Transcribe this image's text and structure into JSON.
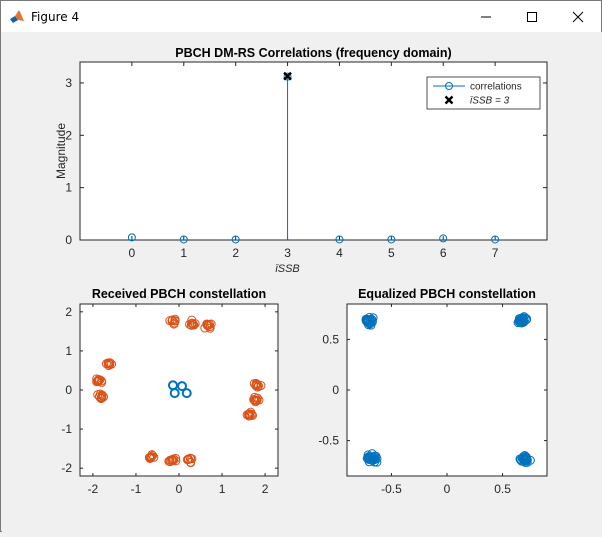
{
  "window": {
    "title": "Figure 4",
    "icons": {
      "app": "matlab-icon",
      "minimize": "minimize-icon",
      "maximize": "maximize-icon",
      "close": "close-icon"
    }
  },
  "colors": {
    "stem": "#0072BD",
    "received": "#D95319",
    "equalized": "#0072BD",
    "marker": "#000000"
  },
  "chart_data": [
    {
      "type": "stem",
      "title": "PBCH DM-RS Correlations (frequency domain)",
      "xlabel": "īSSB",
      "ylabel": "Magnitude",
      "xlim": [
        -1,
        8
      ],
      "ylim": [
        0,
        3.4
      ],
      "xticks": [
        "0",
        "1",
        "2",
        "3",
        "4",
        "5",
        "6",
        "7"
      ],
      "yticks": [
        "0",
        "1",
        "2",
        "3"
      ],
      "series": [
        {
          "name": "correlations",
          "x": [
            0,
            1,
            2,
            3,
            4,
            5,
            6,
            7
          ],
          "values": [
            0.05,
            0.01,
            0.01,
            3.12,
            0.01,
            0.01,
            0.03,
            0.01
          ]
        },
        {
          "name": "īSSB = 3",
          "x": [
            3
          ],
          "values": [
            3.13
          ]
        }
      ],
      "legend": "top-right",
      "grid": false
    },
    {
      "type": "scatter",
      "title": "Received PBCH constellation",
      "xlim": [
        -2.3,
        2.3
      ],
      "ylim": [
        -2.2,
        2.2
      ],
      "xticks": [
        "-2",
        "-1",
        "0",
        "1",
        "2"
      ],
      "yticks": [
        "-2",
        "-1",
        "0",
        "1",
        "2"
      ],
      "series": [
        {
          "name": "",
          "x": [
            0.07,
            -0.14,
            0.18,
            -0.1
          ],
          "values": [
            0.1,
            0.12,
            -0.08,
            -0.08
          ]
        },
        {
          "name": "",
          "clusters": [
            {
              "x": -0.15,
              "y": 1.78
            },
            {
              "x": 0.3,
              "y": 1.72
            },
            {
              "x": 0.68,
              "y": 1.65
            },
            {
              "x": -1.65,
              "y": 0.68
            },
            {
              "x": -1.85,
              "y": 0.25
            },
            {
              "x": -1.8,
              "y": -0.18
            },
            {
              "x": -0.65,
              "y": -1.7
            },
            {
              "x": -0.15,
              "y": -1.78
            },
            {
              "x": 0.25,
              "y": -1.8
            },
            {
              "x": 1.8,
              "y": 0.1
            },
            {
              "x": 1.78,
              "y": -0.25
            },
            {
              "x": 1.65,
              "y": -0.6
            }
          ]
        }
      ],
      "grid": false
    },
    {
      "type": "scatter",
      "title": "Equalized PBCH constellation",
      "xlim": [
        -0.9,
        0.9
      ],
      "ylim": [
        -0.85,
        0.85
      ],
      "xticks": [
        "-0.5",
        "0",
        "0.5"
      ],
      "yticks": [
        "-0.5",
        "0",
        "0.5"
      ],
      "series": [
        {
          "name": "",
          "clusters": [
            {
              "x": -0.7,
              "y": 0.68
            },
            {
              "x": 0.68,
              "y": 0.68
            },
            {
              "x": -0.68,
              "y": -0.68
            },
            {
              "x": 0.7,
              "y": -0.68
            }
          ]
        }
      ],
      "grid": false
    }
  ]
}
